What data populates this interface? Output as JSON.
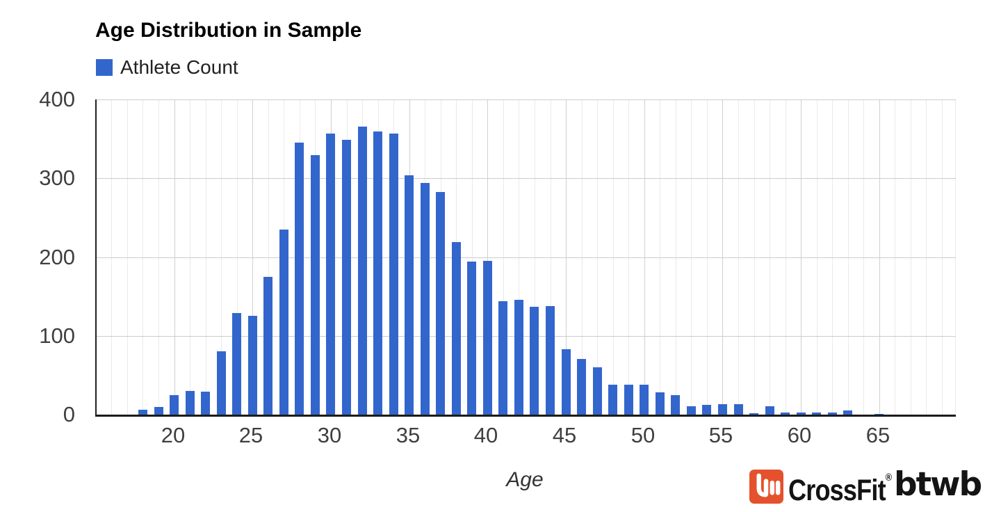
{
  "page": {
    "background": "#ffffff"
  },
  "title": "Age Distribution in Sample",
  "legend": {
    "label": "Athlete Count",
    "swatch_color": "#3366cc"
  },
  "axes": {
    "x_title": "Age",
    "tick_color": "#3f3f3f",
    "y_tick_labels": [
      "0",
      "100",
      "200",
      "300",
      "400"
    ],
    "x_tick_labels": [
      "20",
      "25",
      "30",
      "35",
      "40",
      "45",
      "50",
      "55",
      "60",
      "65"
    ]
  },
  "chart_data": {
    "type": "bar",
    "title": "Age Distribution in Sample",
    "xlabel": "Age",
    "ylabel": "",
    "series_name": "Athlete Count",
    "bar_color": "#3366cc",
    "grid": true,
    "legend_position": "top-left",
    "xlim": [
      15,
      70
    ],
    "ylim": [
      0,
      400
    ],
    "x_tick_values": [
      20,
      25,
      30,
      35,
      40,
      45,
      50,
      55,
      60,
      65
    ],
    "y_tick_values": [
      0,
      100,
      200,
      300,
      400
    ],
    "categories": [
      18,
      19,
      20,
      21,
      22,
      23,
      24,
      25,
      26,
      27,
      28,
      29,
      30,
      31,
      32,
      33,
      34,
      35,
      36,
      37,
      38,
      39,
      40,
      41,
      42,
      43,
      44,
      45,
      46,
      47,
      48,
      49,
      50,
      51,
      52,
      53,
      54,
      55,
      56,
      57,
      58,
      59,
      60,
      61,
      62,
      63,
      64,
      65
    ],
    "values": [
      6,
      10,
      25,
      30,
      29,
      80,
      129,
      125,
      175,
      235,
      345,
      329,
      357,
      349,
      366,
      359,
      357,
      304,
      294,
      283,
      219,
      194,
      195,
      144,
      146,
      137,
      138,
      83,
      71,
      60,
      38,
      38,
      38,
      28,
      25,
      11,
      12,
      13,
      13,
      2,
      11,
      3,
      3,
      3,
      3,
      5,
      0,
      1
    ]
  },
  "logo": {
    "brand": "CrossFit",
    "registered": "®",
    "product": "btwb",
    "icon_color": "#e5512d",
    "icon_mark_color": "#ffffff",
    "text_color": "#141414"
  }
}
